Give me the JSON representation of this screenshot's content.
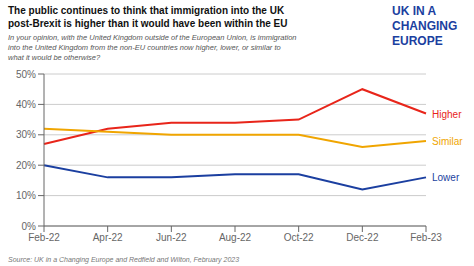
{
  "chart_data": {
    "type": "line",
    "title": "The public continues to think that immigration into the UK\npost-Brexit is higher than it would have been within the EU",
    "subtitle": "In your opinion, with the United Kingdom outside of the European Union, is immigration\ninto the United Kingdom from the non-EU countries now higher, lower, or similar to\nwhat it would be otherwise?",
    "annotations": [
      {
        "text": "Source: UK in a Changing Europe and Redfield and Wilton, February 2023"
      },
      {
        "text": "UK IN A\nCHANGING\nEUROPE",
        "color": "#1b3fa0"
      }
    ],
    "categories": [
      "Feb-22",
      "Apr-22",
      "Jun-22",
      "Aug-22",
      "Oct-22",
      "Dec-22",
      "Feb-23"
    ],
    "series": [
      {
        "name": "Higher",
        "color": "#e8251a",
        "values": [
          27,
          32,
          34,
          34,
          35,
          45,
          37
        ]
      },
      {
        "name": "Similar",
        "color": "#f0a500",
        "values": [
          32,
          31,
          30,
          30,
          30,
          26,
          28
        ]
      },
      {
        "name": "Lower",
        "color": "#1b3fa0",
        "values": [
          20,
          16,
          16,
          17,
          17,
          12,
          16
        ]
      }
    ],
    "ylim": [
      0,
      50
    ],
    "yticks": [
      {
        "value": 0,
        "label": "0%"
      },
      {
        "value": 10,
        "label": "10%"
      },
      {
        "value": 20,
        "label": "20%"
      },
      {
        "value": 30,
        "label": "30%"
      },
      {
        "value": 40,
        "label": "40%"
      },
      {
        "value": 50,
        "label": "50%"
      }
    ],
    "grid": true
  }
}
